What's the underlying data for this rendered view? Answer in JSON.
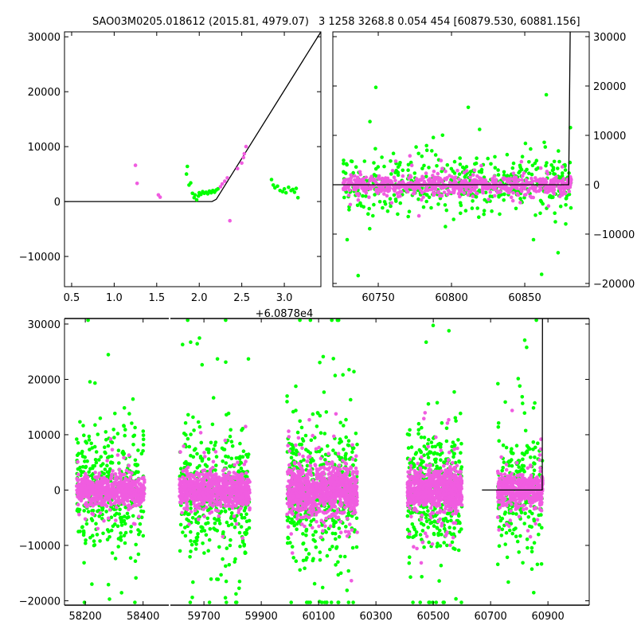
{
  "figure": {
    "title_left": "SAO03M0205.018612 (2015.81, 4979.07)",
    "title_right": "3 1258 3268.8 0.054 454 [60879.530, 60881.156]"
  },
  "colors": {
    "series_a": "#00ff00",
    "series_b": "#f05ce0",
    "model": "#000000"
  },
  "chart_data": [
    {
      "type": "scatter",
      "name": "top-left",
      "xlim": [
        0.416,
        3.43
      ],
      "ylim": [
        -15500,
        30900
      ],
      "x_offset_label": "+6.0878e4",
      "xticks": [
        0.5,
        1.0,
        1.5,
        2.0,
        2.5,
        3.0
      ],
      "xtick_labels": [
        "0.5",
        "1.0",
        "1.5",
        "2.0",
        "2.5",
        "3.0"
      ],
      "yticks": [
        -10000,
        0,
        10000,
        20000,
        30000
      ],
      "ytick_labels": [
        "−10000",
        "0",
        "10000",
        "20000",
        "30000"
      ],
      "ylabel_side": "left",
      "model_line": [
        [
          0.416,
          0
        ],
        [
          2.15,
          0
        ],
        [
          2.2,
          400
        ],
        [
          3.43,
          30900
        ]
      ],
      "series": [
        {
          "name": "magenta",
          "points": [
            [
              1.25,
              6600
            ],
            [
              1.27,
              3300
            ],
            [
              1.52,
              1200
            ],
            [
              1.54,
              800
            ],
            [
              2.3,
              3700
            ],
            [
              2.33,
              4300
            ],
            [
              2.36,
              -3500
            ],
            [
              2.45,
              6000
            ],
            [
              2.5,
              7000
            ],
            [
              2.52,
              8000
            ],
            [
              2.53,
              8700
            ],
            [
              2.55,
              10000
            ],
            [
              2.27,
              3200
            ],
            [
              2.25,
              2700
            ]
          ]
        },
        {
          "name": "green",
          "points": [
            [
              1.86,
              6400
            ],
            [
              1.85,
              5000
            ],
            [
              1.88,
              3000
            ],
            [
              1.9,
              3400
            ],
            [
              1.92,
              1500
            ],
            [
              1.94,
              700
            ],
            [
              1.95,
              1200
            ],
            [
              1.97,
              300
            ],
            [
              1.99,
              1000
            ],
            [
              2.0,
              1600
            ],
            [
              2.02,
              1300
            ],
            [
              2.04,
              1800
            ],
            [
              2.06,
              1500
            ],
            [
              2.08,
              1700
            ],
            [
              2.1,
              1400
            ],
            [
              2.12,
              1900
            ],
            [
              2.14,
              1600
            ],
            [
              2.16,
              2000
            ],
            [
              2.18,
              1700
            ],
            [
              2.2,
              2100
            ],
            [
              2.22,
              2300
            ],
            [
              2.85,
              4000
            ],
            [
              2.87,
              3000
            ],
            [
              2.89,
              2500
            ],
            [
              2.92,
              2800
            ],
            [
              2.95,
              2000
            ],
            [
              2.98,
              1800
            ],
            [
              3.0,
              2300
            ],
            [
              3.02,
              1600
            ],
            [
              3.05,
              2600
            ],
            [
              3.08,
              2000
            ],
            [
              3.1,
              2200
            ],
            [
              3.12,
              1700
            ],
            [
              3.14,
              2400
            ],
            [
              3.16,
              700
            ]
          ]
        }
      ]
    },
    {
      "type": "scatter",
      "name": "top-right",
      "xlim": [
        60719,
        60894
      ],
      "ylim": [
        -20650,
        30970
      ],
      "xticks": [
        60750,
        60800,
        60850
      ],
      "xtick_labels": [
        "60750",
        "60800",
        "60850"
      ],
      "yticks": [
        -20000,
        -10000,
        0,
        10000,
        20000,
        30000
      ],
      "ytick_labels": [
        "−20000",
        "−10000",
        "0",
        "10000",
        "20000",
        "30000"
      ],
      "ylabel_side": "right",
      "model_line": [
        [
          60719,
          0
        ],
        [
          60880,
          0
        ],
        [
          60881,
          30970
        ]
      ],
      "clusters": [
        {
          "x": [
            60726,
            60882
          ],
          "n_green": 520,
          "n_magenta": 700,
          "sd_green": 2600,
          "sd_magenta": 900,
          "outlier_range": [
            -20000,
            23000
          ]
        }
      ]
    },
    {
      "type": "scatter",
      "name": "bottom",
      "broken_xaxis": true,
      "panels": [
        {
          "xlim": [
            58128,
            58489
          ],
          "xticks": [
            58200,
            58400
          ],
          "xtick_labels": [
            "58200",
            "58400"
          ]
        },
        {
          "xlim": [
            59583,
            61044
          ],
          "xticks": [
            59700,
            59900,
            60100,
            60300,
            60500,
            60700,
            60900
          ],
          "xtick_labels": [
            "59700",
            "59900",
            "60100",
            "60300",
            "60500",
            "60700",
            "60900"
          ]
        }
      ],
      "ylim": [
        -20800,
        31000
      ],
      "yticks": [
        -20000,
        -10000,
        0,
        10000,
        20000,
        30000
      ],
      "ytick_labels": [
        "−20000",
        "−10000",
        "0",
        "10000",
        "20000",
        "30000"
      ],
      "model_line": [
        [
          60670,
          0
        ],
        [
          60880,
          0
        ],
        [
          60881,
          31000
        ]
      ],
      "clusters": [
        {
          "x": [
            58170,
            58405
          ],
          "n_green": 380,
          "n_magenta": 650,
          "sd_green": 5000,
          "sd_magenta": 1200
        },
        {
          "x": [
            59615,
            59860
          ],
          "n_green": 420,
          "n_magenta": 800,
          "sd_green": 5500,
          "sd_magenta": 1500
        },
        {
          "x": [
            59990,
            60235
          ],
          "n_green": 480,
          "n_magenta": 900,
          "sd_green": 6000,
          "sd_magenta": 2200
        },
        {
          "x": [
            60410,
            60600
          ],
          "n_green": 420,
          "n_magenta": 800,
          "sd_green": 5500,
          "sd_magenta": 1800
        },
        {
          "x": [
            60725,
            60882
          ],
          "n_green": 260,
          "n_magenta": 500,
          "sd_green": 5000,
          "sd_magenta": 1500
        }
      ]
    }
  ]
}
